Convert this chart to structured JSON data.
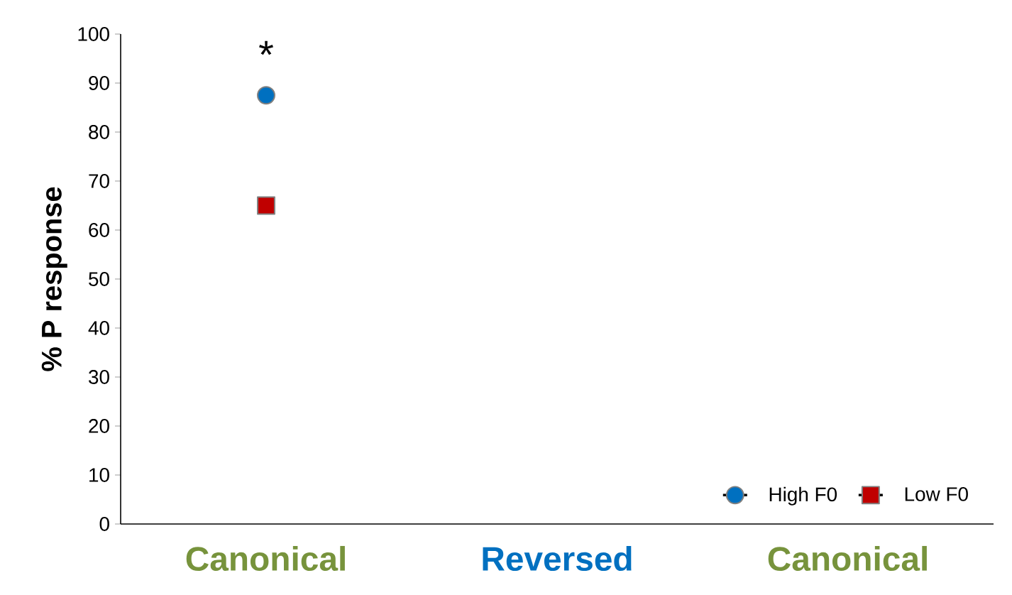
{
  "chart_data": {
    "type": "line",
    "ylabel": "% P response",
    "categories": [
      "Canonical",
      "Reversed",
      "Canonical"
    ],
    "series": [
      {
        "name": "High F0",
        "color": "#0070c0",
        "marker": "circle",
        "values": [
          87.5,
          null,
          null
        ]
      },
      {
        "name": "Low F0",
        "color": "#c00000",
        "marker": "square",
        "values": [
          65,
          null,
          null
        ]
      }
    ],
    "ylim": [
      0,
      100
    ],
    "yticks": [
      0,
      10,
      20,
      30,
      40,
      50,
      60,
      70,
      80,
      90,
      100
    ],
    "grid": false,
    "legend": "bottom right",
    "annotations": [
      "*"
    ]
  }
}
